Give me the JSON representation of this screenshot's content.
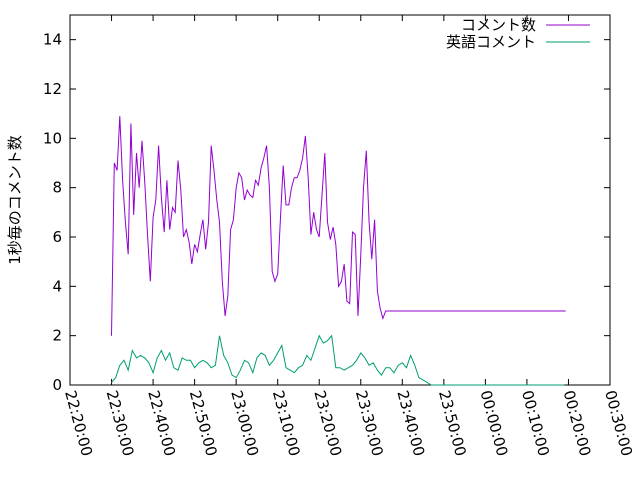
{
  "chart_data": {
    "type": "line",
    "title": "",
    "xlabel": "",
    "ylabel": "1秒毎のコメント数",
    "xlim": [
      "22:20:00",
      "00:30:00"
    ],
    "ylim": [
      0,
      15
    ],
    "legend_position": "top-right",
    "grid": false,
    "x_ticks": [
      "22:20:00",
      "22:30:00",
      "22:40:00",
      "22:50:00",
      "23:00:00",
      "23:10:00",
      "23:20:00",
      "23:30:00",
      "23:40:00",
      "23:50:00",
      "00:00:00",
      "00:10:00",
      "00:20:00",
      "00:30:00"
    ],
    "y_ticks": [
      "0",
      "2",
      "4",
      "6",
      "8",
      "10",
      "12",
      "14"
    ],
    "series": [
      {
        "name": "コメント数",
        "color": "#9400d3",
        "x": [
          "22:30:00",
          "22:30:40",
          "22:31:20",
          "22:32:00",
          "22:32:40",
          "22:33:20",
          "22:34:00",
          "22:34:40",
          "22:35:20",
          "22:36:00",
          "22:36:40",
          "22:37:20",
          "22:38:00",
          "22:38:40",
          "22:39:20",
          "22:40:00",
          "22:40:40",
          "22:41:20",
          "22:42:00",
          "22:42:40",
          "22:43:20",
          "22:44:00",
          "22:44:40",
          "22:45:20",
          "22:46:00",
          "22:46:40",
          "22:47:20",
          "22:48:00",
          "22:48:40",
          "22:49:20",
          "22:50:00",
          "22:50:40",
          "22:51:20",
          "22:52:00",
          "22:52:40",
          "22:53:20",
          "22:54:00",
          "22:54:40",
          "22:55:20",
          "22:56:00",
          "22:56:40",
          "22:57:20",
          "22:58:00",
          "22:58:40",
          "22:59:20",
          "23:00:00",
          "23:00:40",
          "23:01:20",
          "23:02:00",
          "23:02:40",
          "23:03:20",
          "23:04:00",
          "23:04:40",
          "23:05:20",
          "23:06:00",
          "23:06:40",
          "23:07:20",
          "23:08:00",
          "23:08:40",
          "23:09:20",
          "23:10:00",
          "23:10:40",
          "23:11:20",
          "23:12:00",
          "23:12:40",
          "23:13:20",
          "23:14:00",
          "23:14:40",
          "23:15:20",
          "23:16:00",
          "23:16:40",
          "23:17:20",
          "23:18:00",
          "23:18:40",
          "23:19:20",
          "23:20:00",
          "23:20:40",
          "23:21:20",
          "23:22:00",
          "23:22:40",
          "23:23:20",
          "23:24:00",
          "23:24:40",
          "23:25:20",
          "23:26:00",
          "23:26:40",
          "23:27:20",
          "23:28:00",
          "23:28:40",
          "23:29:20",
          "23:30:00",
          "23:30:40",
          "23:31:20",
          "23:32:00",
          "23:32:40",
          "23:33:20",
          "23:34:00",
          "23:34:40",
          "23:35:20",
          "23:36:00",
          "23:36:40",
          "23:37:20",
          "23:38:00",
          "23:38:40",
          "23:39:20",
          "23:40:00",
          "23:40:40",
          "23:41:20",
          "23:42:00",
          "23:42:40",
          "23:43:20",
          "23:44:00",
          "23:44:40",
          "23:45:20",
          "23:46:00",
          "23:46:40",
          "23:47:20",
          "23:48:00",
          "23:48:40",
          "23:49:20",
          "23:50:00",
          "23:50:40",
          "23:51:20",
          "23:52:00",
          "23:52:40",
          "23:53:20",
          "23:54:00",
          "23:54:40",
          "23:55:20",
          "23:56:00",
          "23:56:40",
          "23:57:20",
          "23:58:00",
          "23:58:40",
          "23:59:20",
          "00:00:00",
          "00:00:40",
          "00:01:20",
          "00:02:00",
          "00:02:40",
          "00:03:20",
          "00:04:00",
          "00:04:40",
          "00:05:20",
          "00:06:00",
          "00:06:40",
          "00:07:20",
          "00:08:00",
          "00:08:40",
          "00:09:20",
          "00:10:00",
          "00:10:40",
          "00:11:20",
          "00:12:00",
          "00:12:40",
          "00:13:20",
          "00:14:00",
          "00:14:40",
          "00:15:20",
          "00:16:00",
          "00:16:40",
          "00:17:20",
          "00:18:00",
          "00:18:40",
          "00:19:20"
        ],
        "y": [
          2.0,
          9.0,
          8.7,
          10.9,
          8.3,
          6.6,
          5.3,
          10.6,
          6.9,
          9.4,
          8.0,
          9.9,
          8.2,
          6.1,
          4.2,
          6.8,
          7.5,
          9.7,
          7.6,
          6.2,
          8.3,
          6.3,
          7.2,
          7.0,
          9.1,
          7.9,
          6.0,
          6.3,
          5.8,
          4.9,
          5.7,
          5.4,
          6.1,
          6.7,
          5.5,
          6.6,
          9.7,
          8.7,
          7.5,
          6.6,
          4.2,
          2.8,
          3.6,
          6.3,
          6.7,
          8.0,
          8.6,
          8.4,
          7.5,
          7.9,
          7.7,
          7.6,
          8.3,
          8.1,
          8.8,
          9.2,
          9.7,
          8.0,
          4.6,
          4.2,
          4.5,
          6.8,
          8.9,
          7.3,
          7.3,
          8.0,
          8.4,
          8.4,
          8.7,
          9.2,
          10.1,
          8.4,
          6.1,
          7.0,
          6.3,
          6.0,
          7.7,
          9.4,
          6.6,
          5.9,
          6.4,
          5.7,
          4.0,
          4.2,
          4.9,
          3.4,
          3.3,
          6.2,
          6.1,
          2.8,
          5.3,
          8.0,
          9.5,
          6.6,
          5.1,
          6.7,
          3.8,
          3.1,
          2.7,
          3.0,
          3.0,
          3.0,
          3.0,
          3.0,
          3.0,
          3.0,
          3.0,
          3.0,
          3.0,
          3.0,
          3.0,
          3.0,
          3.0,
          3.0,
          3.0,
          3.0,
          3.0,
          3.0,
          3.0,
          3.0,
          3.0,
          3.0,
          3.0,
          3.0,
          3.0,
          3.0,
          3.0,
          3.0,
          3.0,
          3.0,
          3.0,
          3.0,
          3.0,
          3.0,
          3.0,
          3.0,
          3.0,
          3.0,
          3.0,
          3.0,
          3.0,
          3.0,
          3.0,
          3.0,
          3.0,
          3.0,
          3.0,
          3.0,
          3.0,
          3.0,
          3.0,
          3.0,
          3.0,
          3.0,
          3.0,
          3.0,
          3.0,
          3.0,
          3.0,
          3.0,
          3.0,
          3.0,
          3.0,
          3.0,
          3.0
        ]
      },
      {
        "name": "英語コメント",
        "color": "#009e73",
        "x": [
          "22:30:00",
          "22:31:00",
          "22:32:00",
          "22:33:00",
          "22:34:00",
          "22:35:00",
          "22:36:00",
          "22:37:00",
          "22:38:00",
          "22:39:00",
          "22:40:00",
          "22:41:00",
          "22:42:00",
          "22:43:00",
          "22:44:00",
          "22:45:00",
          "22:46:00",
          "22:47:00",
          "22:48:00",
          "22:49:00",
          "22:50:00",
          "22:51:00",
          "22:52:00",
          "22:53:00",
          "22:54:00",
          "22:55:00",
          "22:56:00",
          "22:57:00",
          "22:58:00",
          "22:59:00",
          "23:00:00",
          "23:01:00",
          "23:02:00",
          "23:03:00",
          "23:04:00",
          "23:05:00",
          "23:06:00",
          "23:07:00",
          "23:08:00",
          "23:09:00",
          "23:10:00",
          "23:11:00",
          "23:12:00",
          "23:13:00",
          "23:14:00",
          "23:15:00",
          "23:16:00",
          "23:17:00",
          "23:18:00",
          "23:19:00",
          "23:20:00",
          "23:21:00",
          "23:22:00",
          "23:23:00",
          "23:24:00",
          "23:25:00",
          "23:26:00",
          "23:27:00",
          "23:28:00",
          "23:29:00",
          "23:30:00",
          "23:31:00",
          "23:32:00",
          "23:33:00",
          "23:34:00",
          "23:35:00",
          "23:36:00",
          "23:37:00",
          "23:38:00",
          "23:39:00",
          "23:40:00",
          "23:41:00",
          "23:42:00",
          "23:43:00",
          "23:44:00",
          "23:45:00",
          "23:46:00",
          "23:47:00",
          "23:48:00",
          "23:49:00",
          "23:50:00",
          "23:51:00",
          "23:52:00",
          "23:53:00",
          "23:54:00",
          "23:55:00",
          "23:56:00",
          "23:57:00",
          "23:58:00",
          "23:59:00",
          "00:00:00",
          "00:01:00",
          "00:02:00",
          "00:03:00",
          "00:04:00",
          "00:05:00",
          "00:06:00",
          "00:07:00",
          "00:08:00",
          "00:09:00",
          "00:10:00",
          "00:11:00",
          "00:12:00",
          "00:13:00",
          "00:14:00",
          "00:15:00",
          "00:16:00",
          "00:17:00",
          "00:18:00",
          "00:19:00"
        ],
        "y": [
          0.1,
          0.3,
          0.8,
          1.0,
          0.6,
          1.4,
          1.1,
          1.2,
          1.1,
          0.9,
          0.5,
          1.1,
          1.4,
          1.0,
          1.3,
          0.7,
          0.6,
          1.1,
          1.0,
          1.0,
          0.7,
          0.9,
          1.0,
          0.9,
          0.7,
          0.8,
          2.0,
          1.2,
          0.9,
          0.4,
          0.3,
          0.6,
          1.0,
          0.9,
          0.5,
          1.1,
          1.3,
          1.2,
          0.8,
          1.0,
          1.3,
          1.6,
          0.7,
          0.6,
          0.5,
          0.7,
          0.8,
          1.2,
          1.0,
          1.5,
          2.0,
          1.7,
          1.8,
          2.0,
          0.7,
          0.7,
          0.6,
          0.7,
          0.8,
          1.0,
          1.3,
          1.1,
          0.8,
          0.9,
          0.6,
          0.4,
          0.7,
          0.7,
          0.5,
          0.8,
          0.9,
          0.7,
          1.2,
          0.8,
          0.3,
          0.2,
          0.1,
          0.0,
          0.0,
          0.0,
          0.0,
          0.0,
          0.0,
          0.0,
          0.0,
          0.0,
          0.0,
          0.0,
          0.0,
          0.0,
          0.0,
          0.0,
          0.0,
          0.0,
          0.0,
          0.0,
          0.0,
          0.0,
          0.0,
          0.0,
          0.0,
          0.0,
          0.0,
          0.0,
          0.0,
          0.0,
          0.0,
          0.0,
          0.0,
          0.0
        ]
      }
    ]
  }
}
